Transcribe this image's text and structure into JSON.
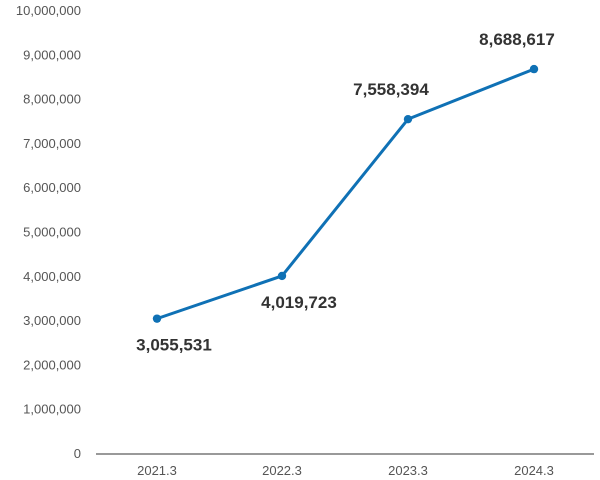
{
  "chart_data": {
    "type": "line",
    "categories": [
      "2021.3",
      "2022.3",
      "2023.3",
      "2024.3"
    ],
    "series": [
      {
        "values": [
          3055531,
          4019723,
          7558394,
          8688617
        ],
        "data_labels": [
          "3,055,531",
          "4,019,723",
          "7,558,394",
          "8,688,617"
        ],
        "color": "#0f71b5"
      }
    ],
    "y_ticks": [
      "0",
      "1,000,000",
      "2,000,000",
      "3,000,000",
      "4,000,000",
      "5,000,000",
      "6,000,000",
      "7,000,000",
      "8,000,000",
      "9,000,000",
      "10,000,000"
    ],
    "ylim": [
      0,
      10000000
    ],
    "grid": false,
    "axis_color": "#333333"
  }
}
